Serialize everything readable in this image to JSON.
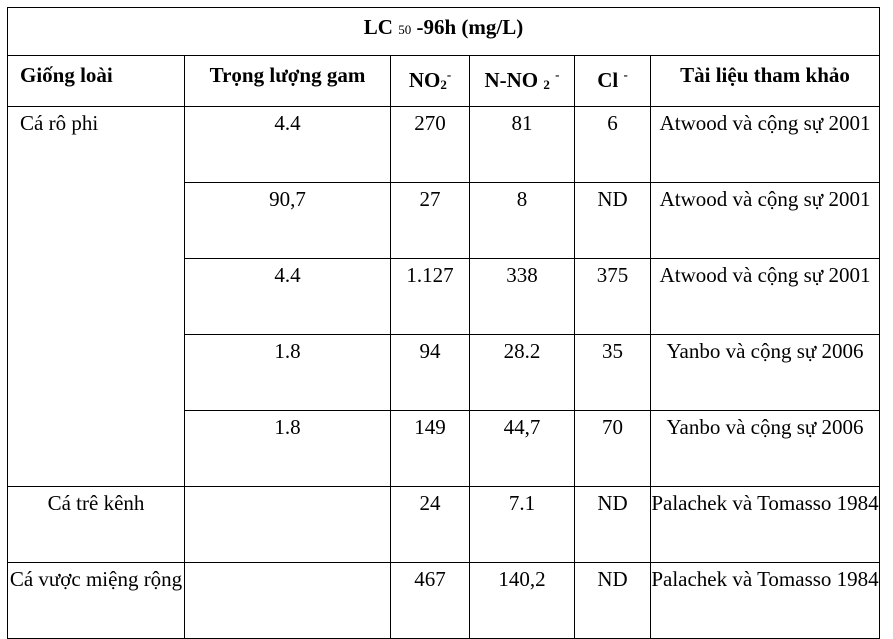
{
  "title": {
    "prefix": "LC",
    "subscript": "50",
    "suffix": "-96h (mg/L)"
  },
  "headers": {
    "species": "Giống loài",
    "weight": "Trọng lượng gam",
    "no2": {
      "base": "NO",
      "sub": "2",
      "sup": "-"
    },
    "nno2": {
      "base": "N-NO",
      "sub": "2",
      "sup": "-"
    },
    "cl": {
      "base": "Cl",
      "sup": "-"
    },
    "reference": "Tài liệu tham khảo"
  },
  "rows": [
    {
      "species": "Cá rô phi",
      "weight": "4.4",
      "no2": "270",
      "nno2": "81",
      "cl": "6",
      "reference": "Atwood và cộng sự 2001"
    },
    {
      "species": "",
      "weight": "90,7",
      "no2": "27",
      "nno2": "8",
      "cl": "ND",
      "reference": "Atwood và cộng sự 2001"
    },
    {
      "species": "",
      "weight": "4.4",
      "no2": "1.127",
      "nno2": "338",
      "cl": "375",
      "reference": "Atwood và cộng sự 2001"
    },
    {
      "species": "",
      "weight": "1.8",
      "no2": "94",
      "nno2": "28.2",
      "cl": "35",
      "reference": "Yanbo và cộng sự 2006"
    },
    {
      "species": "",
      "weight": "1.8",
      "no2": "149",
      "nno2": "44,7",
      "cl": "70",
      "reference": "Yanbo và cộng sự 2006"
    },
    {
      "species": "Cá trê kênh",
      "weight": "",
      "no2": "24",
      "nno2": "7.1",
      "cl": "ND",
      "reference": "Palachek và Tomasso 1984"
    },
    {
      "species": "Cá vược miệng rộng",
      "weight": "",
      "no2": "467",
      "nno2": "140,2",
      "cl": "ND",
      "reference": "Palachek và Tomasso 1984"
    }
  ]
}
